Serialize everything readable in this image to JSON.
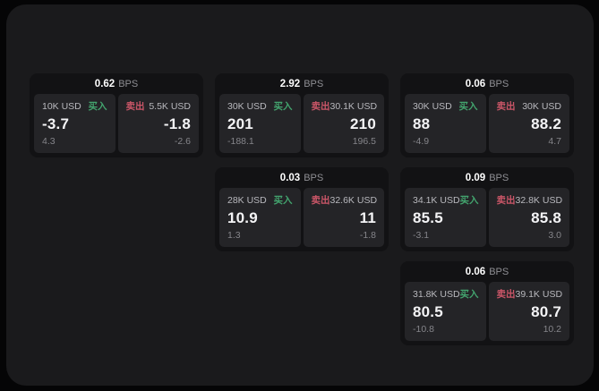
{
  "labels": {
    "buy": "买入",
    "sell": "卖出",
    "bps_unit": "BPS"
  },
  "colors": {
    "page_background": "#050506",
    "surface_background": "#1a1a1c",
    "card_background": "#121214",
    "subcard_background": "#242427",
    "buy_accent": "#43a46e",
    "sell_accent": "#cb5668",
    "primary_text": "#f4f4f6",
    "secondary_text": "#b9b9be",
    "muted_text": "#85858a"
  },
  "cards": [
    {
      "bps": "0.62",
      "col": 1,
      "row": 1,
      "buy": {
        "size": "10K USD",
        "price": "-3.7",
        "delta": "4.3"
      },
      "sell": {
        "size": "5.5K USD",
        "price": "-1.8",
        "delta": "-2.6"
      }
    },
    {
      "bps": "2.92",
      "col": 2,
      "row": 1,
      "buy": {
        "size": "30K USD",
        "price": "201",
        "delta": "-188.1"
      },
      "sell": {
        "size": "30.1K USD",
        "price": "210",
        "delta": "196.5"
      }
    },
    {
      "bps": "0.06",
      "col": 3,
      "row": 1,
      "buy": {
        "size": "30K USD",
        "price": "88",
        "delta": "-4.9"
      },
      "sell": {
        "size": "30K USD",
        "price": "88.2",
        "delta": "4.7"
      }
    },
    {
      "bps": "0.03",
      "col": 2,
      "row": 2,
      "buy": {
        "size": "28K USD",
        "price": "10.9",
        "delta": "1.3"
      },
      "sell": {
        "size": "32.6K USD",
        "price": "11",
        "delta": "-1.8"
      }
    },
    {
      "bps": "0.09",
      "col": 3,
      "row": 2,
      "buy": {
        "size": "34.1K USD",
        "price": "85.5",
        "delta": "-3.1"
      },
      "sell": {
        "size": "32.8K USD",
        "price": "85.8",
        "delta": "3.0"
      }
    },
    {
      "bps": "0.06",
      "col": 3,
      "row": 3,
      "buy": {
        "size": "31.8K USD",
        "price": "80.5",
        "delta": "-10.8"
      },
      "sell": {
        "size": "39.1K USD",
        "price": "80.7",
        "delta": "10.2"
      }
    }
  ]
}
